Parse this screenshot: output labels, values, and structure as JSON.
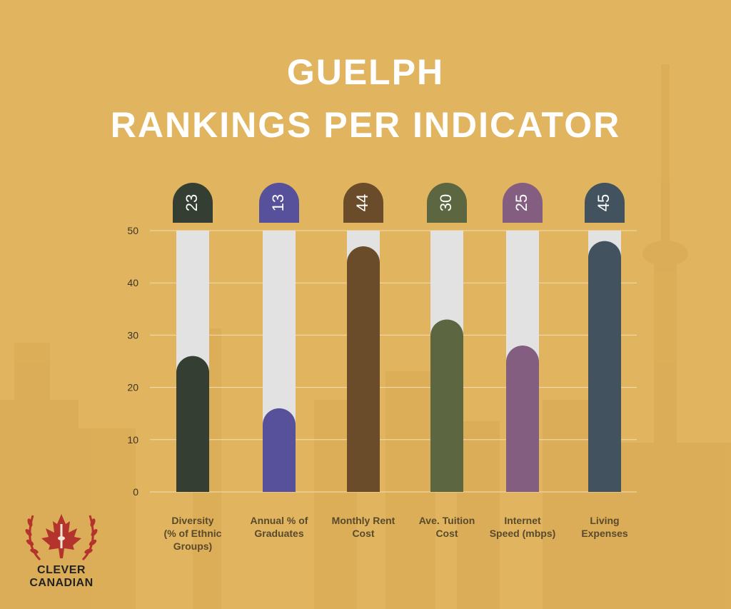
{
  "title": {
    "line1": "GUELPH",
    "line2": "RANKINGS PER INDICATOR"
  },
  "chart_data": {
    "type": "bar",
    "title": "GUELPH RANKINGS PER INDICATOR",
    "categories": [
      "Diversity (% of Ethnic Groups)",
      "Annual % of Graduates",
      "Monthly Rent Cost",
      "Ave. Tuition Cost",
      "Internet Speed (mbps)",
      "Living Expenses"
    ],
    "category_label_lines": [
      [
        "Diversity",
        "(% of Ethnic",
        "Groups)"
      ],
      [
        "Annual % of",
        "Graduates"
      ],
      [
        "Monthly Rent",
        "Cost"
      ],
      [
        "Ave. Tuition",
        "Cost"
      ],
      [
        "Internet",
        "Speed (mbps)"
      ],
      [
        "Living",
        "Expenses"
      ]
    ],
    "values": [
      23,
      13,
      44,
      30,
      25,
      45
    ],
    "data_labels": [
      "23",
      "13",
      "44",
      "30",
      "25",
      "45"
    ],
    "colors": [
      "#353E33",
      "#56519A",
      "#6A4C2B",
      "#5C6640",
      "#835E80",
      "#42525E"
    ],
    "track_color": "#E2E2E2",
    "ylim": [
      0,
      50
    ],
    "yticks": [
      0,
      10,
      20,
      30,
      40,
      50
    ],
    "grid": true,
    "legend": "none"
  },
  "logo": {
    "line1": "CLEVER",
    "line2": "CANADIAN"
  },
  "colors": {
    "background": "#E1B45F",
    "title": "#FFFFFF",
    "gridline": "#F3DDB0"
  }
}
